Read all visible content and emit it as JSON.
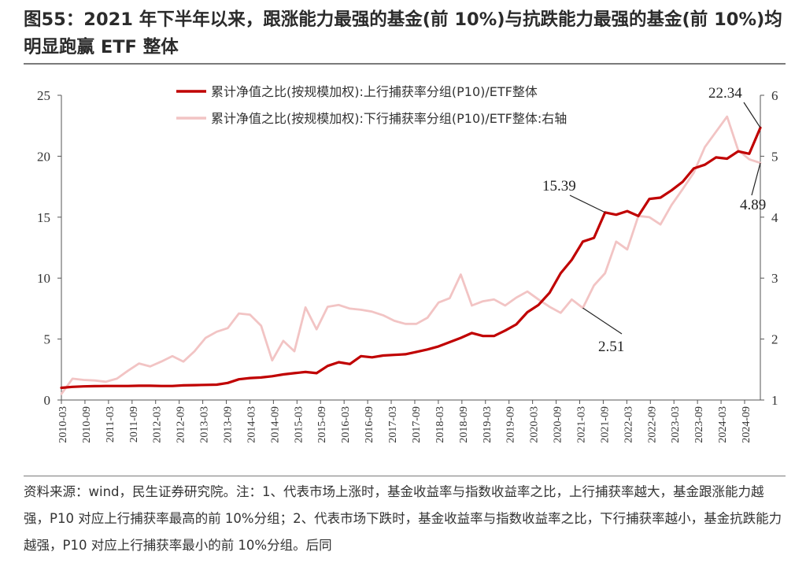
{
  "figure": {
    "title": "图55：2021 年下半年以来，跟涨能力最强的基金(前 10%)与抗跌能力最强的基金(前 10%)均明显跑赢 ETF 整体",
    "note": "资料来源：wind，民生证券研究院。注：1、代表市场上涨时，基金收益率与指数收益率之比，上行捕获率越大，基金跟涨能力越强，P10 对应上行捕获率最高的前 10%分组；2、代表市场下跌时，基金收益率与指数收益率之比，下行捕获率越小，基金抗跌能力越强，P10 对应上行捕获率最小的前 10%分组。后同"
  },
  "chart_data": {
    "type": "line",
    "title": "",
    "xlabel": "",
    "ylabel": "",
    "y_left": {
      "ticks": [
        "0",
        "5",
        "10",
        "15",
        "20",
        "25"
      ],
      "range": [
        0,
        25
      ]
    },
    "y_right": {
      "ticks": [
        "1",
        "2",
        "3",
        "4",
        "5",
        "6"
      ],
      "range": [
        1,
        6
      ]
    },
    "x_ticks": [
      "2010-03",
      "2010-09",
      "2011-03",
      "2011-09",
      "2012-03",
      "2012-09",
      "2013-03",
      "2013-09",
      "2014-03",
      "2014-09",
      "2015-03",
      "2015-09",
      "2016-03",
      "2016-09",
      "2017-03",
      "2017-09",
      "2018-03",
      "2018-09",
      "2019-03",
      "2019-09",
      "2020-03",
      "2020-09",
      "2021-03",
      "2021-09",
      "2022-03",
      "2022-09",
      "2023-03",
      "2023-09",
      "2024-03",
      "2024-09"
    ],
    "legend_position": "top-right",
    "series": [
      {
        "name": "累计净值之比(按规模加权):上行捕获率分组(P10)/ETF整体",
        "axis": "left",
        "color": "#c00000",
        "values": [
          1.0,
          1.08,
          1.12,
          1.14,
          1.15,
          1.15,
          1.15,
          1.17,
          1.17,
          1.15,
          1.15,
          1.2,
          1.22,
          1.24,
          1.26,
          1.4,
          1.7,
          1.8,
          1.85,
          1.95,
          2.1,
          2.2,
          2.3,
          2.2,
          2.8,
          3.1,
          2.95,
          3.6,
          3.5,
          3.65,
          3.7,
          3.75,
          3.95,
          4.15,
          4.4,
          4.75,
          5.1,
          5.5,
          5.25,
          5.25,
          5.7,
          6.2,
          7.2,
          7.8,
          8.8,
          10.4,
          11.5,
          13.0,
          13.3,
          15.39,
          15.2,
          15.5,
          15.1,
          16.5,
          16.6,
          17.2,
          17.9,
          19.0,
          19.3,
          19.9,
          19.8,
          20.4,
          20.2,
          22.34
        ]
      },
      {
        "name": "累计净值之比(按规模加权):下行捕获率分组(P10)/ETF整体:右轴",
        "axis": "right",
        "color": "#f2c4c4",
        "values": [
          1.1,
          1.35,
          1.33,
          1.32,
          1.3,
          1.35,
          1.48,
          1.6,
          1.55,
          1.63,
          1.72,
          1.63,
          1.8,
          2.02,
          2.12,
          2.18,
          2.42,
          2.4,
          2.22,
          1.65,
          1.97,
          1.8,
          2.52,
          2.16,
          2.53,
          2.56,
          2.5,
          2.48,
          2.45,
          2.39,
          2.3,
          2.25,
          2.25,
          2.35,
          2.6,
          2.67,
          3.06,
          2.55,
          2.62,
          2.65,
          2.55,
          2.68,
          2.78,
          2.65,
          2.53,
          2.43,
          2.65,
          2.51,
          2.88,
          3.08,
          3.6,
          3.47,
          4.02,
          4.0,
          3.88,
          4.2,
          4.46,
          4.73,
          5.15,
          5.4,
          5.65,
          5.1,
          4.95,
          4.89
        ]
      }
    ],
    "annotations": [
      {
        "text": "22.34"
      },
      {
        "text": "15.39"
      },
      {
        "text": "4.89"
      },
      {
        "text": "2.51"
      }
    ]
  }
}
